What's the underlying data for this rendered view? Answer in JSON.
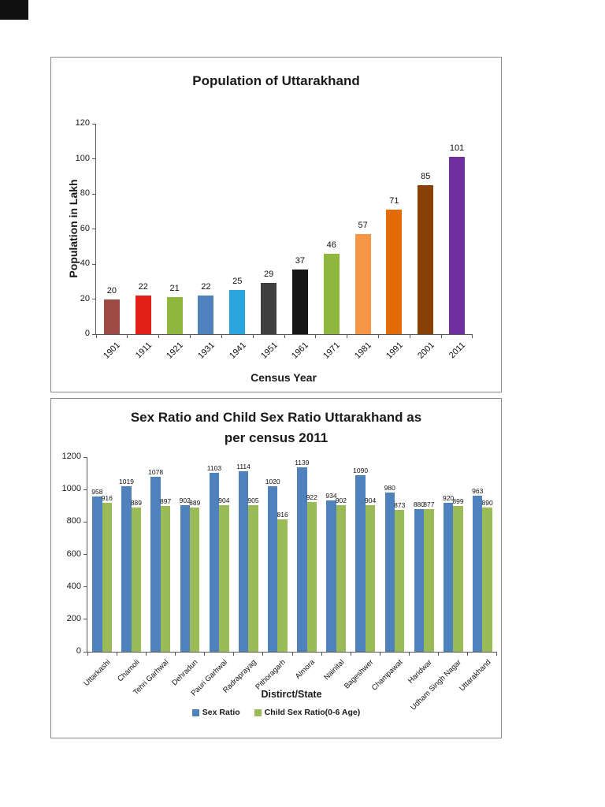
{
  "document": {
    "background": "#ffffff"
  },
  "chart_data": [
    {
      "type": "bar",
      "title": "Population of Uttarakhand",
      "xlabel": "Census Year",
      "ylabel": "Population in Lakh",
      "ylim": [
        0,
        120
      ],
      "yticks": [
        0,
        20,
        40,
        60,
        80,
        100,
        120
      ],
      "grid": false,
      "legend_position": "none",
      "data_labels": true,
      "categories": [
        "1901",
        "1911",
        "1921",
        "1931",
        "1941",
        "1951",
        "1961",
        "1971",
        "1981",
        "1991",
        "2001",
        "2011"
      ],
      "values": [
        20,
        22,
        21,
        22,
        25,
        29,
        37,
        46,
        57,
        71,
        85,
        101
      ],
      "bar_colors": [
        "#9c4a42",
        "#e32017",
        "#8fb73e",
        "#4f81bd",
        "#27a5dc",
        "#3f3f3f",
        "#161616",
        "#8fb73e",
        "#f79646",
        "#e36c09",
        "#8a4107",
        "#7030a0"
      ]
    },
    {
      "type": "bar",
      "title": "Sex Ratio and Child Sex Ratio Uttarakhand as per census 2011",
      "title_lines": [
        "Sex Ratio and Child Sex Ratio Uttarakhand as",
        "per census 2011"
      ],
      "xlabel": "Distirct/State",
      "ylabel": "",
      "ylim": [
        0,
        1200
      ],
      "yticks": [
        0,
        200,
        400,
        600,
        800,
        1000,
        1200
      ],
      "grid": false,
      "legend_position": "bottom",
      "data_labels": true,
      "categories": [
        "Uttarkashi",
        "Chamoli",
        "Tehri Garhwal",
        "Dehradun",
        "Pauri Garhwal",
        "Radraprayag",
        "Pithoragarh",
        "Almora",
        "Nainital",
        "Bageshwer",
        "Champawat",
        "Haridwar",
        "Udham Singh Nagar",
        "Uttarakhand"
      ],
      "series": [
        {
          "name": "Sex Ratio",
          "color": "#4f81bd",
          "values": [
            958,
            1019,
            1078,
            902,
            1103,
            1114,
            1020,
            1139,
            934,
            1090,
            980,
            880,
            920,
            963
          ]
        },
        {
          "name": "Child Sex Ratio(0-6 Age)",
          "color": "#9bbb59",
          "values": [
            916,
            889,
            897,
            889,
            904,
            905,
            816,
            922,
            902,
            904,
            873,
            877,
            899,
            890
          ]
        }
      ]
    }
  ]
}
